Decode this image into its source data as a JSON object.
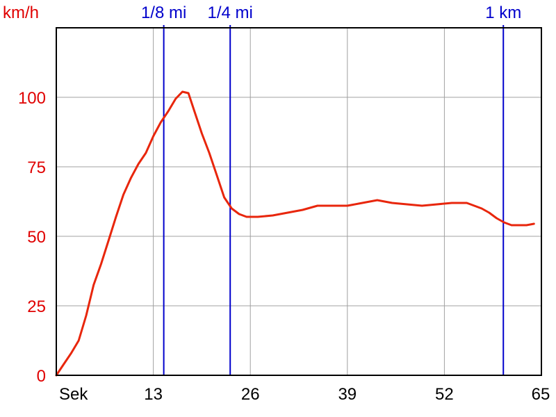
{
  "chart_data": {
    "type": "line",
    "ylabel": "km/h",
    "xlabel": "Sek",
    "xlim": [
      0,
      65
    ],
    "ylim": [
      0,
      125
    ],
    "grid": true,
    "x_ticks": [
      13,
      26,
      39,
      52,
      65
    ],
    "y_ticks": [
      0,
      25,
      50,
      75,
      100
    ],
    "colors": {
      "speed_line": "#e8260c",
      "speed_axis": "#e00000",
      "markers": "#0000cc",
      "grid": "#a0a0a0",
      "frame": "#000000"
    },
    "markers": [
      {
        "label": "1/8 mi",
        "x": 14.4
      },
      {
        "label": "1/4 mi",
        "x": 23.3
      },
      {
        "label": "1 km",
        "x": 59.9
      }
    ],
    "series": [
      {
        "x": [
          0,
          1,
          2,
          3,
          4,
          5,
          6,
          7,
          8,
          9,
          10,
          11,
          12,
          13,
          14,
          15,
          16,
          16.9,
          17.7,
          18.5,
          19.5,
          20.5,
          21.5,
          22.5,
          23.5,
          24.5,
          25.5,
          27,
          29,
          31,
          33,
          35,
          37,
          39,
          41,
          43,
          45,
          47,
          49,
          51,
          53,
          55,
          56,
          57,
          58,
          59,
          60,
          61,
          62,
          63,
          64
        ],
        "y": [
          0,
          4,
          8,
          12.5,
          21.5,
          32.5,
          40,
          48.5,
          57,
          65,
          71,
          76,
          80,
          86,
          91,
          95,
          99.5,
          102,
          101.5,
          95,
          87,
          80,
          72,
          64,
          60,
          58,
          57,
          57,
          57.5,
          58.5,
          59.5,
          61,
          61,
          61,
          62,
          63,
          62,
          61.5,
          61,
          61.5,
          62,
          62,
          61,
          60,
          58.5,
          56.5,
          55,
          54,
          54,
          54,
          54.5
        ]
      }
    ]
  }
}
